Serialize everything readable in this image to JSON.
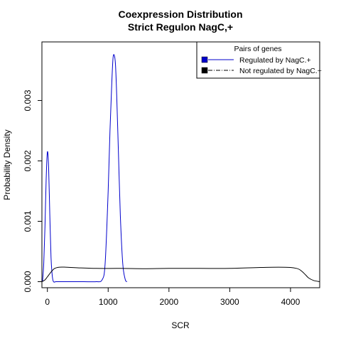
{
  "chart_data": {
    "type": "line",
    "title_lines": [
      "Coexpression Distribution",
      "Strict Regulon NagC,+"
    ],
    "xlabel": "SCR",
    "ylabel": "Probability Density",
    "xlim": [
      -90,
      4480
    ],
    "ylim": [
      -0.0001,
      0.00397
    ],
    "xticks": [
      0,
      1000,
      2000,
      3000,
      4000
    ],
    "yticks": [
      0.0,
      0.001,
      0.002,
      0.003
    ],
    "ytick_labels": [
      "0.000",
      "0.001",
      "0.002",
      "0.003"
    ],
    "legend": {
      "title": "Pairs of genes",
      "placement": "top-right",
      "entries": [
        {
          "label": "Regulated by  NagC.+",
          "color": "#0000cc",
          "box": "#0000cc",
          "dash": "solid"
        },
        {
          "label": "Not regulated by  NagC.+",
          "color": "#000000",
          "box": "#000000",
          "dash": "dashdot"
        }
      ]
    },
    "series": [
      {
        "name": "Regulated by  NagC.+",
        "color": "#0000cc",
        "x": [
          -80,
          -60,
          -40,
          -20,
          0,
          20,
          40,
          60,
          80,
          100,
          140,
          200,
          400,
          600,
          800,
          900,
          950,
          1000,
          1030,
          1060,
          1080,
          1100,
          1120,
          1140,
          1170,
          1200,
          1240,
          1280,
          1310
        ],
        "y": [
          0.0,
          0.0003,
          0.0009,
          0.0017,
          0.00215,
          0.0019,
          0.0011,
          0.0004,
          0.0001,
          0.0,
          0.0,
          0.0,
          0.0,
          0.0,
          0.0,
          3e-05,
          0.0003,
          0.0015,
          0.0025,
          0.0033,
          0.0037,
          0.00375,
          0.0036,
          0.0031,
          0.0021,
          0.0011,
          0.0003,
          4e-05,
          0.0
        ]
      },
      {
        "name": "Not regulated by  NagC.+",
        "color": "#000000",
        "x": [
          -90,
          -40,
          0,
          60,
          120,
          200,
          300,
          500,
          800,
          1200,
          1600,
          2000,
          2500,
          3000,
          3500,
          3800,
          4000,
          4100,
          4150,
          4200,
          4250,
          4300,
          4380,
          4480
        ],
        "y": [
          0.0,
          3e-05,
          8e-05,
          0.00016,
          0.00022,
          0.00024,
          0.00024,
          0.00023,
          0.00022,
          0.00022,
          0.000215,
          0.00022,
          0.00022,
          0.00022,
          0.000235,
          0.00024,
          0.000235,
          0.00022,
          0.0002,
          0.00016,
          0.00011,
          6e-05,
          2e-05,
          0.0
        ]
      }
    ]
  }
}
